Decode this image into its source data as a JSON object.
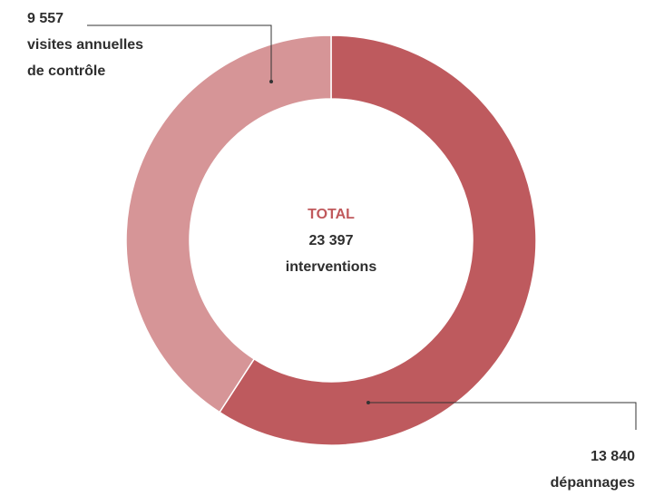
{
  "chart_data": {
    "type": "pie",
    "donut": true,
    "center": {
      "title": "TOTAL",
      "value": "23 397",
      "unit": "interventions"
    },
    "slices": [
      {
        "value": 13840,
        "value_label": "13 840",
        "label": "dépannages",
        "color": "#be5a5e"
      },
      {
        "value": 9557,
        "value_label": "9 557",
        "label_lines": [
          "visites annuelles",
          "de contrôle"
        ],
        "color": "#d69597"
      }
    ]
  }
}
